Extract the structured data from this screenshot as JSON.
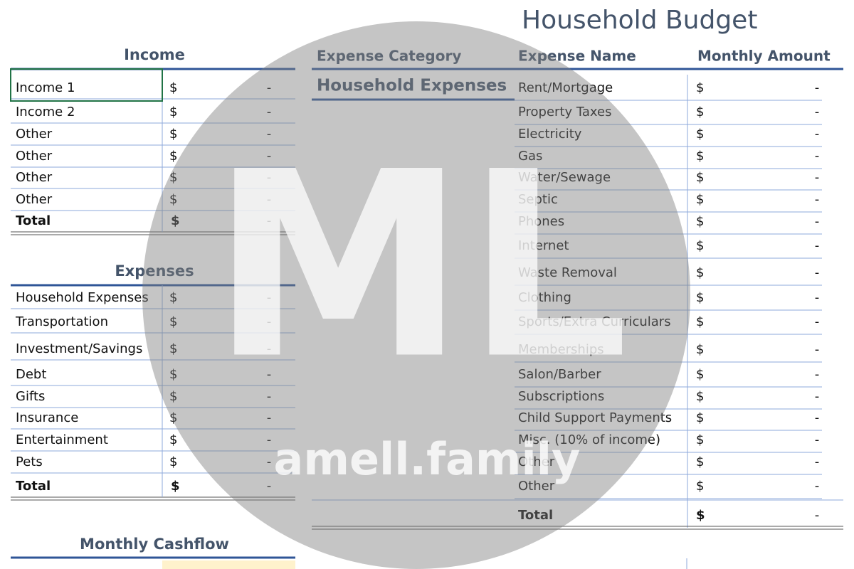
{
  "title": "Household Budget",
  "income": {
    "heading": "Income",
    "rows": [
      [
        "Income 1",
        "$",
        "-"
      ],
      [
        "Income 2",
        "$",
        "-"
      ],
      [
        "Other",
        "$",
        "-"
      ],
      [
        "Other",
        "$",
        "-"
      ],
      [
        "Other",
        "$",
        "-"
      ],
      [
        "Other",
        "$",
        "-"
      ]
    ],
    "total": [
      "Total",
      "$",
      "-"
    ]
  },
  "expenses": {
    "heading": "Expenses",
    "rows": [
      [
        "Household Expenses",
        "$",
        "-"
      ],
      [
        "Transportation",
        "$",
        "-"
      ],
      [
        "Investment/Savings",
        "$",
        "-"
      ],
      [
        "Debt",
        "$",
        "-"
      ],
      [
        "Gifts",
        "$",
        "-"
      ],
      [
        "Insurance",
        "$",
        "-"
      ],
      [
        "Entertainment",
        "$",
        "-"
      ],
      [
        "Pets",
        "$",
        "-"
      ]
    ],
    "total": [
      "Total",
      "$",
      "-"
    ]
  },
  "cashflow": {
    "heading": "Monthly Cashflow"
  },
  "detail": {
    "headers": [
      "Expense Category",
      "Expense Name",
      "Monthly Amount"
    ],
    "category": "Household Expenses",
    "rows": [
      [
        "Rent/Mortgage",
        "$",
        "-"
      ],
      [
        "Property Taxes",
        "$",
        "-"
      ],
      [
        "Electricity",
        "$",
        "-"
      ],
      [
        "Gas",
        "$",
        "-"
      ],
      [
        "Water/Sewage",
        "$",
        "-"
      ],
      [
        "Septic",
        "$",
        "-"
      ],
      [
        "Phones",
        "$",
        "-"
      ],
      [
        "Internet",
        "$",
        "-"
      ],
      [
        "Waste Removal",
        "$",
        "-"
      ],
      [
        "Clothing",
        "$",
        "-"
      ],
      [
        "Sports/Extra Curriculars",
        "$",
        "-"
      ],
      [
        "Memberships",
        "$",
        "-"
      ],
      [
        "Salon/Barber",
        "$",
        "-"
      ],
      [
        "Subscriptions",
        "$",
        "-"
      ],
      [
        "Child Support Payments",
        "$",
        "-"
      ],
      [
        "Misc. (10% of income)",
        "$",
        "-"
      ],
      [
        "Other",
        "$",
        "-"
      ],
      [
        "Other",
        "$",
        "-"
      ]
    ],
    "total": [
      "Total",
      "$",
      "-"
    ]
  },
  "watermark": {
    "logo": "ML",
    "site": "amell.family"
  }
}
